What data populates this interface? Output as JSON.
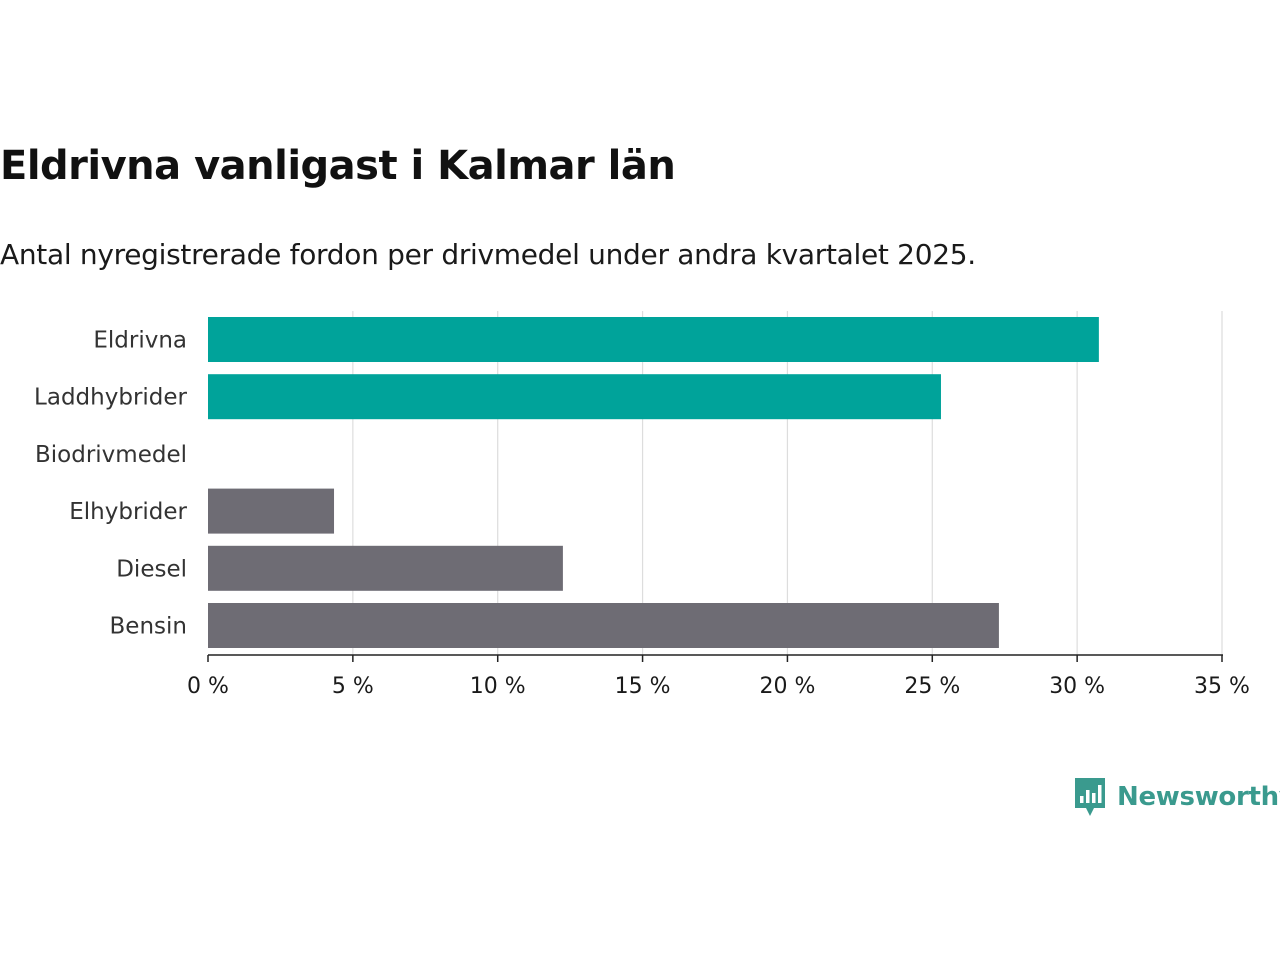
{
  "title": "Eldrivna vanligast i Kalmar län",
  "subtitle": "Antal nyregistrerade fordon per drivmedel under andra kvartalet 2025.",
  "brand": {
    "name": "Newsworthy",
    "color": "#3a9a8e"
  },
  "colors": {
    "highlight": "#00a39a",
    "default": "#6e6c74",
    "grid": "#dddddd",
    "axis": "#222222"
  },
  "chart_data": {
    "type": "bar",
    "orientation": "horizontal",
    "categories": [
      "Eldrivna",
      "Laddhybrider",
      "Biodrivmedel",
      "Elhybrider",
      "Diesel",
      "Bensin"
    ],
    "values": [
      30.75,
      25.3,
      0,
      4.35,
      12.25,
      27.3
    ],
    "highlighted": [
      true,
      true,
      true,
      false,
      false,
      false
    ],
    "xlim": [
      0,
      35
    ],
    "ticks": [
      0,
      5,
      10,
      15,
      20,
      25,
      30,
      35
    ],
    "tick_labels": [
      "0 %",
      "5 %",
      "10 %",
      "15 %",
      "20 %",
      "25 %",
      "30 %",
      "35 %"
    ],
    "grid": true
  }
}
